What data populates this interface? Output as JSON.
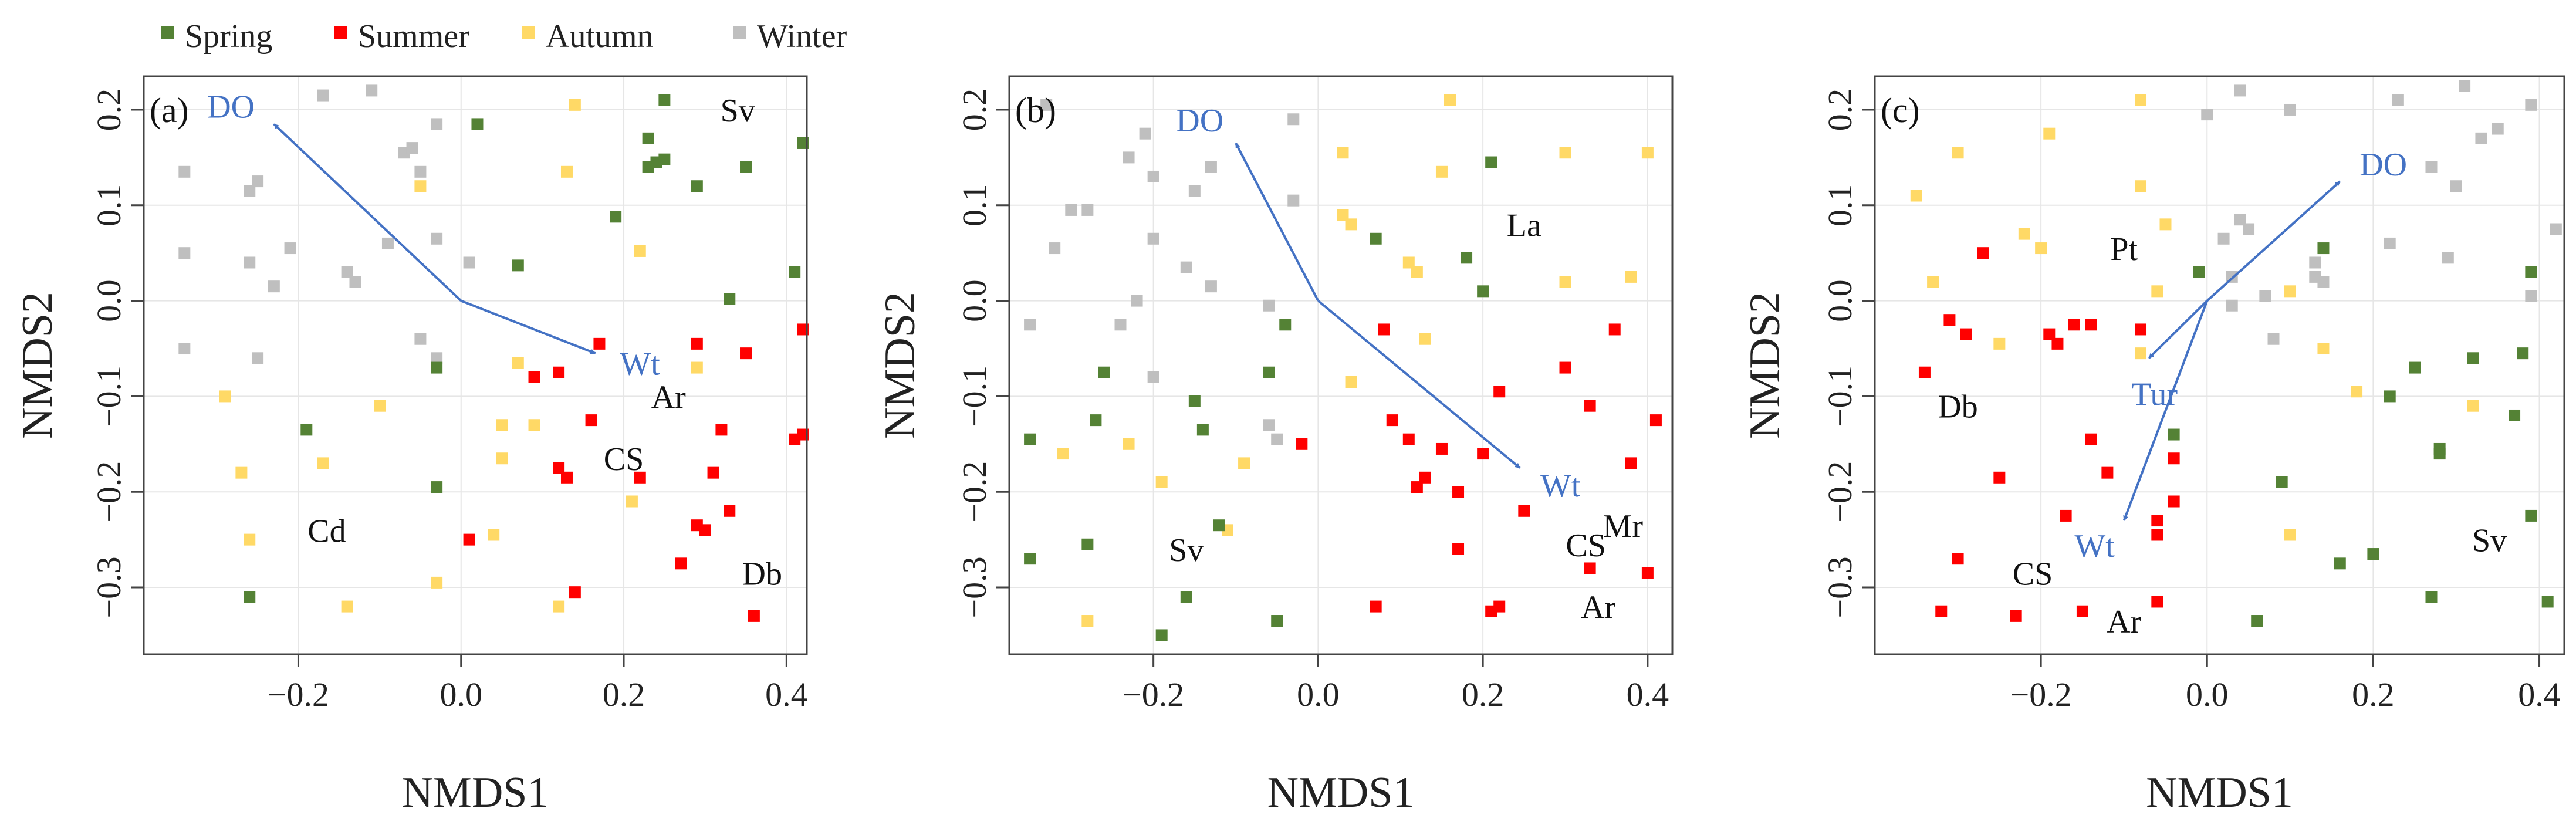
{
  "colors": {
    "Spring": "#548235",
    "Summer": "#ff0000",
    "Autumn": "#ffd966",
    "Winter": "#bfbfbf",
    "arrow": "#4472c4",
    "grid": "#e6e6e6",
    "axis": "#444444"
  },
  "legend": [
    "Spring",
    "Summer",
    "Autumn",
    "Winter"
  ],
  "chart_data": [
    {
      "type": "scatter",
      "panel": "(a)",
      "xlabel": "NMDS1",
      "ylabel": "NMDS2",
      "xlim": [
        -0.39,
        0.425
      ],
      "ylim": [
        -0.37,
        0.235
      ],
      "xticks": [
        -0.2,
        0.0,
        0.2,
        0.4
      ],
      "xtick_labels": [
        "−0.2",
        "0.0",
        "0.2",
        "0.4"
      ],
      "yticks": [
        -0.3,
        -0.2,
        -0.1,
        0.0,
        0.1,
        0.2
      ],
      "ytick_labels": [
        "−0.3",
        "−0.2",
        "−0.1",
        "0.0",
        "0.1",
        "0.2"
      ],
      "grid": true,
      "points": {
        "Spring": [
          [
            0.02,
            0.185
          ],
          [
            0.25,
            0.21
          ],
          [
            0.23,
            0.17
          ],
          [
            0.23,
            0.14
          ],
          [
            0.24,
            0.145
          ],
          [
            0.25,
            0.148
          ],
          [
            0.29,
            0.12
          ],
          [
            0.35,
            0.14
          ],
          [
            0.42,
            0.165
          ],
          [
            0.19,
            0.088
          ],
          [
            0.07,
            0.037
          ],
          [
            0.41,
            0.03
          ],
          [
            0.33,
            0.002
          ],
          [
            -0.03,
            -0.07
          ],
          [
            -0.19,
            -0.135
          ],
          [
            -0.03,
            -0.195
          ],
          [
            -0.26,
            -0.31
          ]
        ],
        "Summer": [
          [
            0.17,
            -0.045
          ],
          [
            0.12,
            -0.075
          ],
          [
            0.09,
            -0.08
          ],
          [
            0.29,
            -0.045
          ],
          [
            0.35,
            -0.055
          ],
          [
            0.42,
            -0.03
          ],
          [
            0.16,
            -0.125
          ],
          [
            0.12,
            -0.175
          ],
          [
            0.13,
            -0.185
          ],
          [
            0.22,
            -0.185
          ],
          [
            0.32,
            -0.135
          ],
          [
            0.42,
            -0.14
          ],
          [
            0.41,
            -0.145
          ],
          [
            0.31,
            -0.18
          ],
          [
            0.29,
            -0.235
          ],
          [
            0.3,
            -0.24
          ],
          [
            0.33,
            -0.22
          ],
          [
            0.27,
            -0.275
          ],
          [
            0.36,
            -0.33
          ],
          [
            0.01,
            -0.25
          ],
          [
            0.14,
            -0.305
          ]
        ],
        "Autumn": [
          [
            0.14,
            0.205
          ],
          [
            0.13,
            0.135
          ],
          [
            -0.05,
            0.12
          ],
          [
            0.22,
            0.052
          ],
          [
            0.07,
            -0.065
          ],
          [
            0.05,
            -0.13
          ],
          [
            0.09,
            -0.13
          ],
          [
            0.05,
            -0.165
          ],
          [
            0.29,
            -0.07
          ],
          [
            0.21,
            -0.21
          ],
          [
            0.04,
            -0.245
          ],
          [
            -0.1,
            -0.11
          ],
          [
            -0.17,
            -0.17
          ],
          [
            -0.29,
            -0.1
          ],
          [
            -0.27,
            -0.18
          ],
          [
            -0.26,
            -0.25
          ],
          [
            -0.14,
            -0.32
          ],
          [
            -0.03,
            -0.295
          ],
          [
            0.12,
            -0.32
          ]
        ],
        "Winter": [
          [
            -0.17,
            0.215
          ],
          [
            -0.11,
            0.22
          ],
          [
            -0.34,
            0.135
          ],
          [
            -0.26,
            0.115
          ],
          [
            -0.25,
            0.125
          ],
          [
            -0.07,
            0.155
          ],
          [
            -0.06,
            0.16
          ],
          [
            -0.05,
            0.135
          ],
          [
            -0.03,
            0.185
          ],
          [
            -0.34,
            0.05
          ],
          [
            -0.26,
            0.04
          ],
          [
            -0.21,
            0.055
          ],
          [
            -0.14,
            0.03
          ],
          [
            -0.13,
            0.02
          ],
          [
            -0.23,
            0.015
          ],
          [
            -0.09,
            0.06
          ],
          [
            -0.03,
            0.065
          ],
          [
            0.01,
            0.04
          ],
          [
            -0.05,
            -0.04
          ],
          [
            -0.03,
            -0.06
          ],
          [
            -0.25,
            -0.06
          ],
          [
            -0.34,
            -0.05
          ]
        ]
      },
      "arrows": [
        {
          "label": "DO",
          "to": [
            -0.23,
            0.185
          ]
        },
        {
          "label": "Wt",
          "to": [
            0.165,
            -0.055
          ]
        }
      ],
      "species": [
        {
          "label": "Sv",
          "x": 0.34,
          "y": 0.2
        },
        {
          "label": "Ar",
          "x": 0.255,
          "y": -0.1
        },
        {
          "label": "CS",
          "x": 0.2,
          "y": -0.165
        },
        {
          "label": "Cd",
          "x": -0.165,
          "y": -0.24
        },
        {
          "label": "Db",
          "x": 0.37,
          "y": -0.285
        }
      ]
    },
    {
      "type": "scatter",
      "panel": "(b)",
      "xlabel": "NMDS1",
      "ylabel": "NMDS2",
      "xlim": [
        -0.375,
        0.43
      ],
      "ylim": [
        -0.37,
        0.235
      ],
      "xticks": [
        -0.2,
        0.0,
        0.2,
        0.4
      ],
      "xtick_labels": [
        "−0.2",
        "0.0",
        "0.2",
        "0.4"
      ],
      "yticks": [
        -0.3,
        -0.2,
        -0.1,
        0.0,
        0.1,
        0.2
      ],
      "ytick_labels": [
        "−0.3",
        "−0.2",
        "−0.1",
        "0.0",
        "0.1",
        "0.2"
      ],
      "grid": true,
      "points": {
        "Spring": [
          [
            0.21,
            0.145
          ],
          [
            0.07,
            0.065
          ],
          [
            0.18,
            0.045
          ],
          [
            0.2,
            0.01
          ],
          [
            -0.04,
            -0.025
          ],
          [
            -0.06,
            -0.075
          ],
          [
            -0.26,
            -0.075
          ],
          [
            -0.27,
            -0.125
          ],
          [
            -0.15,
            -0.105
          ],
          [
            -0.14,
            -0.135
          ],
          [
            -0.35,
            -0.145
          ],
          [
            -0.12,
            -0.235
          ],
          [
            -0.28,
            -0.255
          ],
          [
            -0.35,
            -0.27
          ],
          [
            -0.16,
            -0.31
          ],
          [
            -0.19,
            -0.35
          ],
          [
            -0.05,
            -0.335
          ]
        ],
        "Summer": [
          [
            0.08,
            -0.03
          ],
          [
            0.3,
            -0.07
          ],
          [
            0.36,
            -0.03
          ],
          [
            0.22,
            -0.095
          ],
          [
            0.33,
            -0.11
          ],
          [
            0.41,
            -0.125
          ],
          [
            0.09,
            -0.125
          ],
          [
            0.11,
            -0.145
          ],
          [
            0.15,
            -0.155
          ],
          [
            0.2,
            -0.16
          ],
          [
            0.13,
            -0.185
          ],
          [
            0.12,
            -0.195
          ],
          [
            0.17,
            -0.2
          ],
          [
            0.25,
            -0.22
          ],
          [
            0.38,
            -0.17
          ],
          [
            0.17,
            -0.26
          ],
          [
            0.33,
            -0.28
          ],
          [
            0.4,
            -0.285
          ],
          [
            0.07,
            -0.32
          ],
          [
            0.21,
            -0.325
          ],
          [
            0.22,
            -0.32
          ],
          [
            -0.02,
            -0.15
          ]
        ],
        "Autumn": [
          [
            0.16,
            0.21
          ],
          [
            0.03,
            0.155
          ],
          [
            0.15,
            0.135
          ],
          [
            0.3,
            0.155
          ],
          [
            0.4,
            0.155
          ],
          [
            0.03,
            0.09
          ],
          [
            0.04,
            0.08
          ],
          [
            0.11,
            0.04
          ],
          [
            0.12,
            0.03
          ],
          [
            0.3,
            0.02
          ],
          [
            0.38,
            0.025
          ],
          [
            0.13,
            -0.04
          ],
          [
            0.04,
            -0.085
          ],
          [
            -0.09,
            -0.17
          ],
          [
            -0.19,
            -0.19
          ],
          [
            -0.23,
            -0.15
          ],
          [
            -0.31,
            -0.16
          ],
          [
            -0.11,
            -0.24
          ],
          [
            -0.28,
            -0.335
          ]
        ],
        "Winter": [
          [
            -0.33,
            0.205
          ],
          [
            -0.03,
            0.19
          ],
          [
            -0.23,
            0.15
          ],
          [
            -0.2,
            0.13
          ],
          [
            -0.21,
            0.175
          ],
          [
            -0.13,
            0.14
          ],
          [
            -0.3,
            0.095
          ],
          [
            -0.28,
            0.095
          ],
          [
            -0.32,
            0.055
          ],
          [
            -0.15,
            0.115
          ],
          [
            -0.03,
            0.105
          ],
          [
            -0.2,
            0.065
          ],
          [
            -0.16,
            0.035
          ],
          [
            -0.22,
            0.0
          ],
          [
            -0.13,
            0.015
          ],
          [
            -0.06,
            -0.005
          ],
          [
            -0.35,
            -0.025
          ],
          [
            -0.24,
            -0.025
          ],
          [
            -0.2,
            -0.08
          ],
          [
            -0.06,
            -0.13
          ],
          [
            -0.05,
            -0.145
          ]
        ]
      },
      "arrows": [
        {
          "label": "DO",
          "to": [
            -0.1,
            0.165
          ]
        },
        {
          "label": "Wt",
          "to": [
            0.245,
            -0.175
          ]
        }
      ],
      "species": [
        {
          "label": "La",
          "x": 0.25,
          "y": 0.08
        },
        {
          "label": "CS",
          "x": 0.325,
          "y": -0.255
        },
        {
          "label": "Mr",
          "x": 0.37,
          "y": -0.235
        },
        {
          "label": "Ar",
          "x": 0.34,
          "y": -0.32
        },
        {
          "label": "Sv",
          "x": -0.16,
          "y": -0.26
        }
      ]
    },
    {
      "type": "scatter",
      "panel": "(c)",
      "xlabel": "NMDS1",
      "ylabel": "NMDS2",
      "xlim": [
        -0.4,
        0.43
      ],
      "ylim": [
        -0.37,
        0.235
      ],
      "xticks": [
        -0.2,
        0.0,
        0.2,
        0.4
      ],
      "xtick_labels": [
        "−0.2",
        "0.0",
        "0.2",
        "0.4"
      ],
      "yticks": [
        -0.3,
        -0.2,
        -0.1,
        0.0,
        0.1,
        0.2
      ],
      "ytick_labels": [
        "−0.3",
        "−0.2",
        "−0.1",
        "0.0",
        "0.1",
        "0.2"
      ],
      "grid": true,
      "points": {
        "Spring": [
          [
            0.14,
            0.055
          ],
          [
            -0.01,
            0.03
          ],
          [
            0.39,
            0.03
          ],
          [
            0.32,
            -0.06
          ],
          [
            0.38,
            -0.055
          ],
          [
            0.25,
            -0.07
          ],
          [
            0.22,
            -0.1
          ],
          [
            0.37,
            -0.12
          ],
          [
            0.28,
            -0.155
          ],
          [
            0.28,
            -0.16
          ],
          [
            -0.04,
            -0.14
          ],
          [
            0.09,
            -0.19
          ],
          [
            0.16,
            -0.275
          ],
          [
            0.2,
            -0.265
          ],
          [
            0.39,
            -0.225
          ],
          [
            0.41,
            -0.315
          ],
          [
            0.27,
            -0.31
          ],
          [
            0.06,
            -0.335
          ]
        ],
        "Summer": [
          [
            -0.27,
            0.05
          ],
          [
            -0.31,
            -0.02
          ],
          [
            -0.29,
            -0.035
          ],
          [
            -0.19,
            -0.035
          ],
          [
            -0.18,
            -0.045
          ],
          [
            -0.16,
            -0.025
          ],
          [
            -0.14,
            -0.025
          ],
          [
            -0.08,
            -0.03
          ],
          [
            -0.34,
            -0.075
          ],
          [
            -0.14,
            -0.145
          ],
          [
            -0.12,
            -0.18
          ],
          [
            -0.25,
            -0.185
          ],
          [
            -0.17,
            -0.225
          ],
          [
            -0.04,
            -0.165
          ],
          [
            -0.06,
            -0.23
          ],
          [
            -0.06,
            -0.245
          ],
          [
            -0.04,
            -0.21
          ],
          [
            -0.3,
            -0.27
          ],
          [
            -0.32,
            -0.325
          ],
          [
            -0.23,
            -0.33
          ],
          [
            -0.15,
            -0.325
          ],
          [
            -0.06,
            -0.315
          ]
        ],
        "Autumn": [
          [
            -0.08,
            0.21
          ],
          [
            -0.3,
            0.155
          ],
          [
            -0.19,
            0.175
          ],
          [
            -0.35,
            0.11
          ],
          [
            -0.08,
            0.12
          ],
          [
            -0.05,
            0.08
          ],
          [
            -0.22,
            0.07
          ],
          [
            -0.2,
            0.055
          ],
          [
            -0.33,
            0.02
          ],
          [
            -0.06,
            0.01
          ],
          [
            0.1,
            0.01
          ],
          [
            -0.25,
            -0.045
          ],
          [
            -0.08,
            -0.055
          ],
          [
            0.14,
            -0.05
          ],
          [
            0.18,
            -0.095
          ],
          [
            0.32,
            -0.11
          ],
          [
            0.1,
            -0.245
          ]
        ],
        "Winter": [
          [
            0.0,
            0.195
          ],
          [
            0.04,
            0.22
          ],
          [
            0.1,
            0.2
          ],
          [
            0.23,
            0.21
          ],
          [
            0.31,
            0.225
          ],
          [
            0.39,
            0.205
          ],
          [
            0.33,
            0.17
          ],
          [
            0.35,
            0.18
          ],
          [
            0.04,
            0.085
          ],
          [
            0.05,
            0.075
          ],
          [
            0.02,
            0.065
          ],
          [
            0.27,
            0.14
          ],
          [
            0.3,
            0.12
          ],
          [
            0.42,
            0.075
          ],
          [
            0.22,
            0.06
          ],
          [
            0.29,
            0.045
          ],
          [
            0.14,
            0.02
          ],
          [
            0.13,
            0.025
          ],
          [
            0.03,
            0.025
          ],
          [
            0.39,
            0.005
          ],
          [
            0.07,
            0.005
          ],
          [
            0.03,
            -0.005
          ],
          [
            0.08,
            -0.04
          ],
          [
            0.13,
            0.04
          ]
        ]
      },
      "arrows": [
        {
          "label": "DO",
          "to": [
            0.16,
            0.125
          ]
        },
        {
          "label": "Tur",
          "to": [
            -0.07,
            -0.06
          ]
        },
        {
          "label": "Wt",
          "to": [
            -0.1,
            -0.23
          ]
        }
      ],
      "species": [
        {
          "label": "Pt",
          "x": -0.1,
          "y": 0.055
        },
        {
          "label": "Db",
          "x": -0.3,
          "y": -0.11
        },
        {
          "label": "CS",
          "x": -0.21,
          "y": -0.285
        },
        {
          "label": "Ar",
          "x": -0.1,
          "y": -0.335
        },
        {
          "label": "Sv",
          "x": 0.34,
          "y": -0.25
        }
      ]
    }
  ]
}
